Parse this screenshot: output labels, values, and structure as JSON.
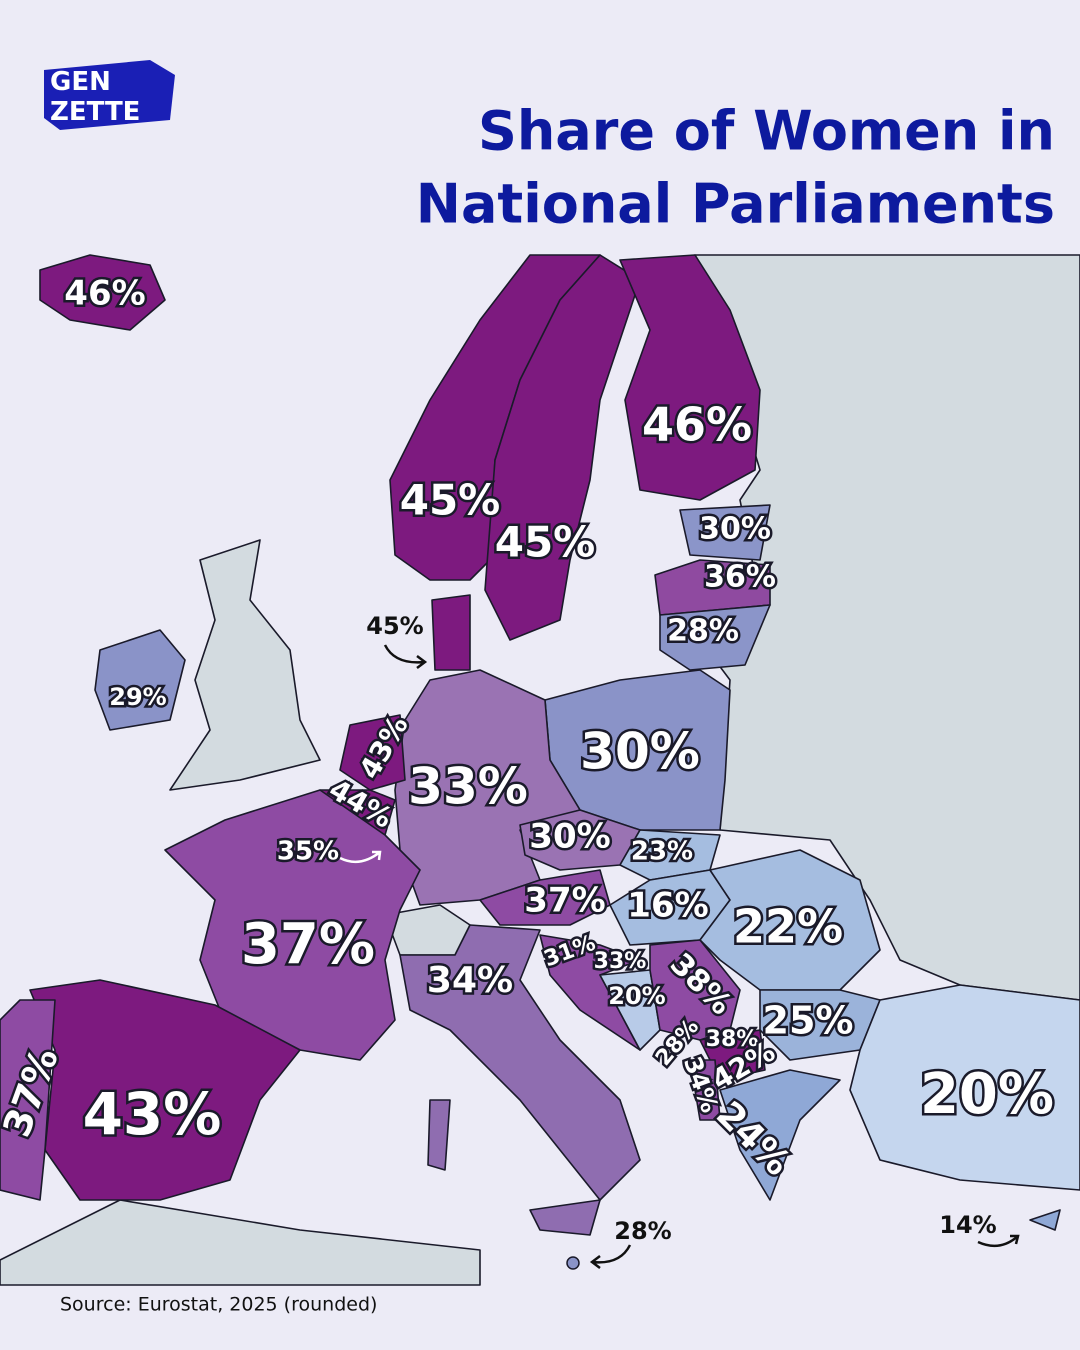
{
  "header": {
    "logo": [
      "GEN",
      "ZETTE"
    ],
    "title": [
      "Share of Women in",
      "National Parliaments"
    ]
  },
  "labels": [
    "46%",
    "46%",
    "45%",
    "45%",
    "30%",
    "36%",
    "28%",
    "45%",
    "29%",
    "30%",
    "43%",
    "44%",
    "33%",
    "35%",
    "30%",
    "23%",
    "37%",
    "16%",
    "22%",
    "37%",
    "34%",
    "31%",
    "33%",
    "20%",
    "38%",
    "25%",
    "28%",
    "38%",
    "42%",
    "34%",
    "24%",
    "20%",
    "43%",
    "37%",
    "28%",
    "14%"
  ],
  "footer": {
    "source": "Source: Eurostat, 2025 (rounded)"
  }
}
